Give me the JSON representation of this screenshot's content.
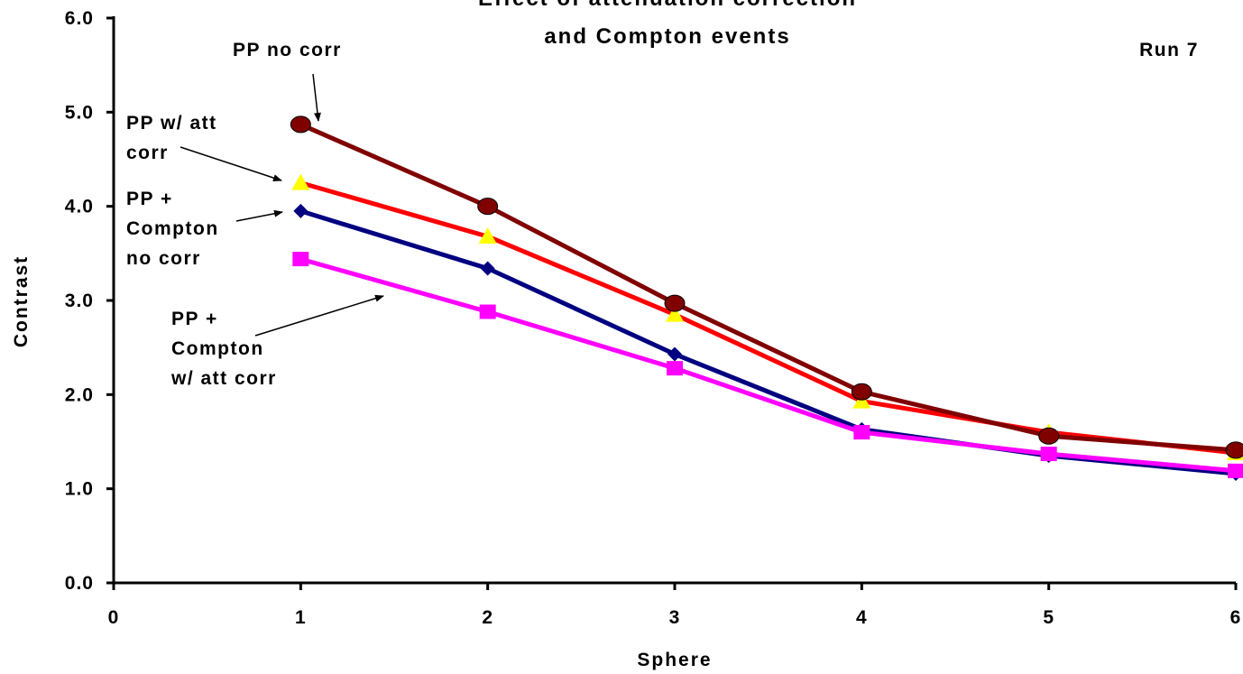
{
  "chart_data": {
    "type": "line",
    "title_lines": [
      "Effect of attenuation correction",
      "and Compton events"
    ],
    "corner_note": "Run 7",
    "xlabel": "Sphere",
    "ylabel": "Contrast",
    "xlim": [
      0,
      6
    ],
    "ylim": [
      0.0,
      6.0
    ],
    "x_ticks": [
      "0",
      "1",
      "2",
      "3",
      "4",
      "5",
      "6"
    ],
    "y_ticks": [
      "0.0",
      "1.0",
      "2.0",
      "3.0",
      "4.0",
      "5.0",
      "6.0"
    ],
    "grid": false,
    "legend": "none",
    "x": [
      1,
      2,
      3,
      4,
      5,
      6
    ],
    "series": [
      {
        "id": "pp-att",
        "color": "#ff0000",
        "marker": "triangle",
        "marker_color": "#ffff00",
        "values": [
          4.25,
          3.68,
          2.85,
          1.93,
          1.6,
          1.38
        ]
      },
      {
        "id": "ppc-nocorr",
        "color": "#000080",
        "marker": "diamond",
        "marker_color": "#000080",
        "values": [
          3.95,
          3.34,
          2.43,
          1.63,
          1.35,
          1.16
        ]
      },
      {
        "id": "ppc-att",
        "color": "#ff00ff",
        "marker": "square",
        "marker_color": "#ff00ff",
        "values": [
          3.44,
          2.88,
          2.28,
          1.6,
          1.37,
          1.19
        ]
      },
      {
        "id": "pp-nocorr",
        "color": "#800000",
        "marker": "circle",
        "marker_color": "#800000",
        "values": [
          4.87,
          4.0,
          2.97,
          2.03,
          1.56,
          1.41
        ]
      }
    ],
    "annotations": [
      {
        "id": "pp-nocorr",
        "lines": [
          "PP no corr"
        ],
        "target": [
          1,
          4.87
        ]
      },
      {
        "id": "pp-att",
        "lines": [
          "PP w/ att",
          "corr"
        ],
        "target": [
          1,
          4.25
        ]
      },
      {
        "id": "ppc-nocorr",
        "lines": [
          "PP +",
          "Compton",
          "no corr"
        ],
        "target": [
          1,
          3.95
        ]
      },
      {
        "id": "ppc-att",
        "lines": [
          "PP +",
          "Compton",
          " w/ att corr"
        ],
        "target": [
          1,
          3.44
        ]
      }
    ]
  }
}
